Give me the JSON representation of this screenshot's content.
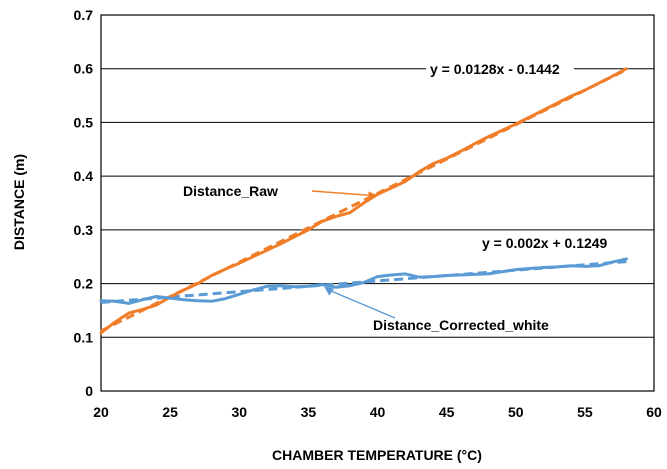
{
  "chart_data": {
    "type": "line",
    "xlabel": "CHAMBER TEMPERATURE (°C)",
    "ylabel": "DISTANCE (m)",
    "xlim": [
      20,
      60
    ],
    "ylim": [
      0,
      0.7
    ],
    "xticks": [
      20,
      25,
      30,
      35,
      40,
      45,
      50,
      55,
      60
    ],
    "xtick_labels": [
      "20",
      "25",
      "30",
      "35",
      "40",
      "45",
      "50",
      "55",
      "60"
    ],
    "yticks": [
      0,
      0.1,
      0.2,
      0.3,
      0.4,
      0.5,
      0.6,
      0.7
    ],
    "ytick_labels": [
      "0",
      "0.1",
      "0.2",
      "0.3",
      "0.4",
      "0.5",
      "0.6",
      "0.7"
    ],
    "grid": "horizontal",
    "colors": {
      "raw": "#F07D28",
      "corrected": "#5B9BD5"
    },
    "series": [
      {
        "name": "Distance_Raw",
        "x": [
          20,
          21,
          22,
          23,
          24,
          25,
          26,
          27,
          28,
          29,
          30,
          31,
          32,
          33,
          34,
          35,
          36,
          37,
          38,
          39,
          40,
          41,
          42,
          43,
          44,
          45,
          46,
          47,
          48,
          49,
          50,
          51,
          52,
          53,
          54,
          55,
          56,
          57,
          58
        ],
        "y": [
          0.108,
          0.128,
          0.145,
          0.152,
          0.16,
          0.175,
          0.188,
          0.2,
          0.215,
          0.227,
          0.238,
          0.25,
          0.262,
          0.274,
          0.287,
          0.3,
          0.316,
          0.325,
          0.332,
          0.35,
          0.366,
          0.378,
          0.39,
          0.408,
          0.423,
          0.433,
          0.446,
          0.46,
          0.473,
          0.485,
          0.497,
          0.51,
          0.523,
          0.536,
          0.549,
          0.56,
          0.573,
          0.586,
          0.6
        ]
      },
      {
        "name": "Distance_Corrected_white",
        "x": [
          20,
          21,
          22,
          23,
          24,
          25,
          26,
          27,
          28,
          29,
          30,
          31,
          32,
          33,
          34,
          35,
          36,
          37,
          38,
          39,
          40,
          41,
          42,
          43,
          44,
          45,
          46,
          47,
          48,
          49,
          50,
          51,
          52,
          53,
          54,
          55,
          56,
          57,
          58
        ],
        "y": [
          0.168,
          0.167,
          0.163,
          0.17,
          0.176,
          0.173,
          0.17,
          0.168,
          0.167,
          0.172,
          0.18,
          0.188,
          0.195,
          0.196,
          0.194,
          0.195,
          0.198,
          0.193,
          0.196,
          0.202,
          0.213,
          0.216,
          0.218,
          0.212,
          0.213,
          0.215,
          0.216,
          0.217,
          0.218,
          0.222,
          0.226,
          0.228,
          0.23,
          0.231,
          0.233,
          0.232,
          0.233,
          0.24,
          0.246
        ]
      }
    ],
    "trendlines": [
      {
        "series": "Distance_Raw",
        "equation": "y = 0.0128x - 0.1442",
        "slope": 0.0128,
        "intercept": -0.1442,
        "x_range": [
          20,
          58
        ]
      },
      {
        "series": "Distance_Corrected_white",
        "equation": "y = 0.002x + 0.1249",
        "slope": 0.002,
        "intercept": 0.1249,
        "x_range": [
          20,
          58
        ]
      }
    ],
    "annotations": [
      {
        "text": "Distance_Raw",
        "points_to": {
          "x": 40,
          "y": 0.366
        }
      },
      {
        "text": "Distance_Corrected_white",
        "points_to": {
          "x": 36,
          "y": 0.198
        }
      }
    ]
  }
}
